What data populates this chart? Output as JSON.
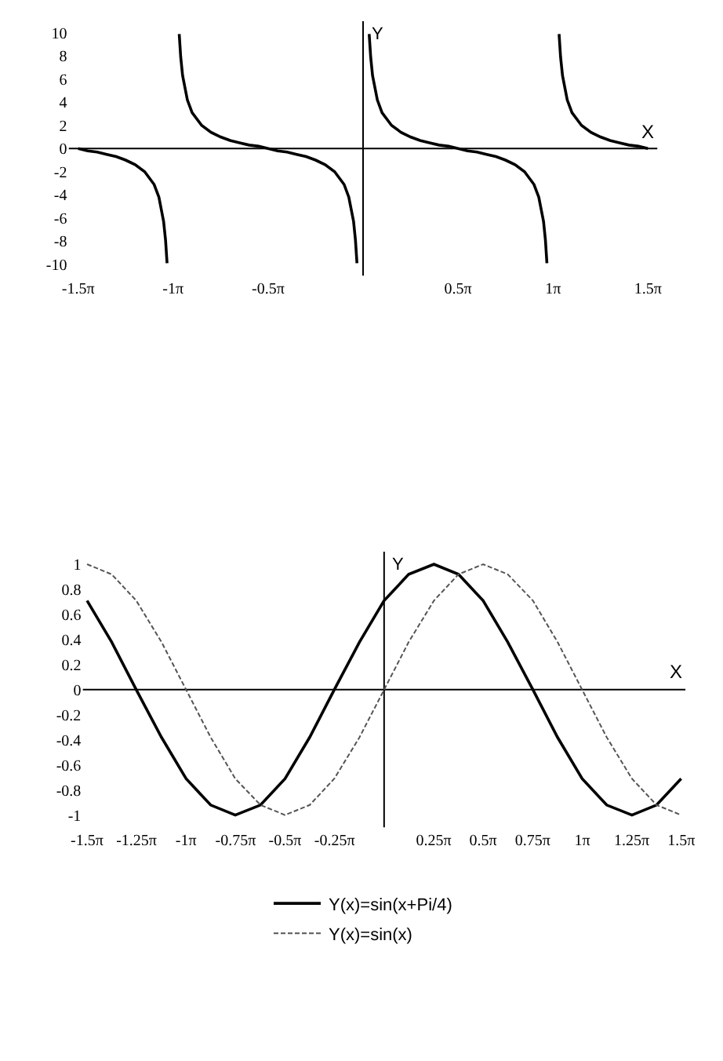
{
  "chart_data": [
    {
      "type": "line",
      "xlabel": "X",
      "ylabel": "Y",
      "xlim": [
        -4.87,
        4.87
      ],
      "ylim": [
        -11,
        11
      ],
      "legend": false,
      "marker": "none",
      "xticks": [
        {
          "value": -4.712,
          "label": "-1.5π"
        },
        {
          "value": -3.142,
          "label": "-1π"
        },
        {
          "value": -1.571,
          "label": "-0.5π"
        },
        {
          "value": 1.571,
          "label": "0.5π"
        },
        {
          "value": 3.142,
          "label": "1π"
        },
        {
          "value": 4.712,
          "label": "1.5π"
        }
      ],
      "yticks": [
        -10,
        -8,
        -6,
        -4,
        -2,
        0,
        2,
        4,
        6,
        8,
        10
      ],
      "series": [
        {
          "color": "#000000",
          "line_style": "solid",
          "x": [
            -4.712,
            -4.555,
            -4.398,
            -4.241,
            -4.084,
            -3.927,
            -3.77,
            -3.613,
            -3.456,
            -3.377,
            -3.299,
            -3.267,
            -3.242,
            -3.142,
            -3.041,
            -3.016,
            -2.985,
            -2.906,
            -2.827,
            -2.67,
            -2.513,
            -2.356,
            -2.199,
            -2.042,
            -1.885,
            -1.728,
            -1.571,
            -1.414,
            -1.257,
            -1.1,
            -0.942,
            -0.785,
            -0.628,
            -0.471,
            -0.314,
            -0.236,
            -0.157,
            -0.126,
            -0.101,
            0.0,
            0.101,
            0.126,
            0.157,
            0.236,
            0.314,
            0.471,
            0.628,
            0.785,
            0.942,
            1.1,
            1.257,
            1.414,
            1.571,
            1.728,
            1.885,
            2.042,
            2.199,
            2.356,
            2.513,
            2.67,
            2.827,
            2.906,
            2.985,
            3.016,
            3.041,
            3.142,
            3.242,
            3.267,
            3.299,
            3.377,
            3.456,
            3.613,
            3.77,
            3.927,
            4.084,
            4.241,
            4.398,
            4.555,
            4.712
          ],
          "values": [
            0,
            -0.2,
            -0.3,
            -0.5,
            -0.7,
            -1,
            -1.4,
            -2,
            -3.1,
            -4.2,
            -6.3,
            -7.9,
            -9.9,
            null,
            9.9,
            7.9,
            6.3,
            4.2,
            3.1,
            2,
            1.4,
            1,
            0.7,
            0.5,
            0.3,
            0.2,
            0,
            -0.2,
            -0.3,
            -0.5,
            -0.7,
            -1,
            -1.4,
            -2,
            -3.1,
            -4.2,
            -6.3,
            -7.9,
            -9.9,
            null,
            9.9,
            7.9,
            6.3,
            4.2,
            3.1,
            2,
            1.4,
            1,
            0.7,
            0.5,
            0.3,
            0.2,
            0,
            -0.2,
            -0.3,
            -0.5,
            -0.7,
            -1,
            -1.4,
            -2,
            -3.1,
            -4.2,
            -6.3,
            -7.9,
            -9.9,
            null,
            9.9,
            7.9,
            6.3,
            4.2,
            3.1,
            2,
            1.4,
            1,
            0.7,
            0.5,
            0.3,
            0.2,
            0
          ]
        }
      ]
    },
    {
      "type": "line",
      "xlabel": "X",
      "ylabel": "Y",
      "xlim": [
        -4.78,
        4.78
      ],
      "ylim": [
        -1.1,
        1.1
      ],
      "legend": "bottom",
      "marker": "none",
      "xticks": [
        {
          "value": -4.712,
          "label": "-1.5π"
        },
        {
          "value": -3.927,
          "label": "-1.25π"
        },
        {
          "value": -3.142,
          "label": "-1π"
        },
        {
          "value": -2.356,
          "label": "-0.75π"
        },
        {
          "value": -1.571,
          "label": "-0.5π"
        },
        {
          "value": -0.785,
          "label": "-0.25π"
        },
        {
          "value": 0.785,
          "label": "0.25π"
        },
        {
          "value": 1.571,
          "label": "0.5π"
        },
        {
          "value": 2.356,
          "label": "0.75π"
        },
        {
          "value": 3.142,
          "label": "1π"
        },
        {
          "value": 3.927,
          "label": "1.25π"
        },
        {
          "value": 4.712,
          "label": "1.5π"
        }
      ],
      "yticks": [
        -1,
        -0.8,
        -0.6,
        -0.4,
        -0.2,
        0,
        0.2,
        0.4,
        0.6,
        0.8,
        1
      ],
      "x": [
        -4.71,
        -4.32,
        -3.93,
        -3.53,
        -3.14,
        -2.75,
        -2.36,
        -1.96,
        -1.57,
        -1.18,
        -0.79,
        -0.39,
        0,
        0.39,
        0.79,
        1.18,
        1.57,
        1.96,
        2.36,
        2.75,
        3.14,
        3.53,
        3.93,
        4.32,
        4.71
      ],
      "series": [
        {
          "name": "Y(x)=sin(x+Pi/4)",
          "color": "#000000",
          "line_style": "solid",
          "values": [
            0.71,
            0.38,
            0,
            -0.38,
            -0.71,
            -0.92,
            -1,
            -0.92,
            -0.71,
            -0.38,
            0,
            0.38,
            0.71,
            0.92,
            1,
            0.92,
            0.71,
            0.38,
            0,
            -0.38,
            -0.71,
            -0.92,
            -1,
            -0.92,
            -0.71
          ]
        },
        {
          "name": "Y(x)=sin(x)",
          "color": "#555555",
          "line_style": "dashed",
          "values": [
            1,
            0.92,
            0.71,
            0.38,
            0,
            -0.38,
            -0.71,
            -0.92,
            -1,
            -0.92,
            -0.71,
            -0.38,
            0,
            0.38,
            0.71,
            0.92,
            1,
            0.92,
            0.71,
            0.38,
            0,
            -0.38,
            -0.71,
            -0.92,
            -1
          ]
        }
      ]
    }
  ]
}
